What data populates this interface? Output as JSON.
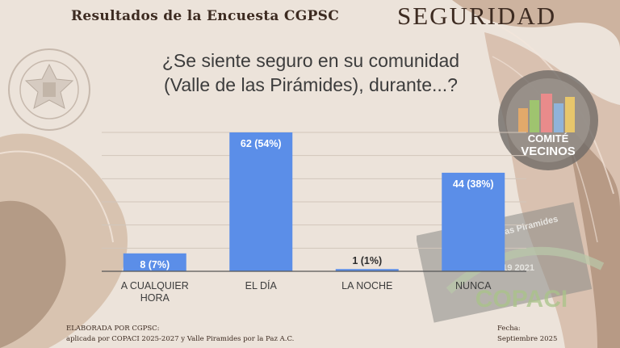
{
  "header": {
    "title": "Resultados de la Encuesta CGPSC",
    "section": "SEGURIDAD"
  },
  "question": {
    "line1": "¿Se siente seguro en su comunidad",
    "line2": "(Valle de las Pirámides), durante...?"
  },
  "logos": {
    "vecinos_text1": "COMITÉ",
    "vecinos_text2": "VECINOS",
    "copaci_text": "COPACI",
    "copaci_arc": "Valle de las Piramides",
    "copaci_years": "2019 2021"
  },
  "colors": {
    "bar": "#5b8ee8",
    "background": "#ece3da",
    "title": "#3d2b21"
  },
  "chart_data": {
    "type": "bar",
    "categories": [
      "A CUALQUIER HORA",
      "EL DÍA",
      "LA NOCHE",
      "NUNCA"
    ],
    "category_lines": [
      [
        "A CUALQUIER",
        "HORA"
      ],
      [
        "EL DÍA"
      ],
      [
        "LA NOCHE"
      ],
      [
        "NUNCA"
      ]
    ],
    "values": [
      8,
      62,
      1,
      44
    ],
    "data_labels": [
      "8 (7%)",
      "62 (54%)",
      "1 (1%)",
      "44 (38%)"
    ],
    "ylim": [
      0,
      62
    ],
    "grid": true,
    "title": "¿Se siente seguro en su comunidad (Valle de las Pirámides), durante...?"
  },
  "footer": {
    "left_line1": "ELABORADA POR CGPSC:",
    "left_line2": "aplicada por COPACI 2025-2027 y Valle Piramides por la Paz A.C.",
    "right_line1": "Fecha:",
    "right_line2": "Septiembre 2025"
  }
}
